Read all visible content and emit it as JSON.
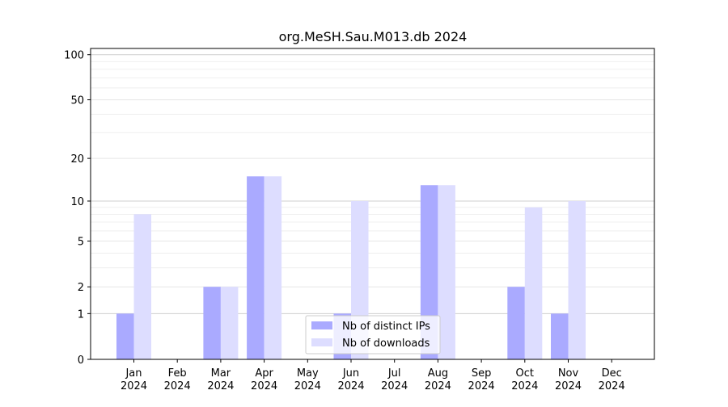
{
  "chart_data": {
    "type": "bar",
    "title": "org.MeSH.Sau.M013.db 2024",
    "xlabel": "",
    "ylabel": "",
    "y_scale": "log1p",
    "ylim": [
      0,
      110
    ],
    "y_ticks": [
      0,
      1,
      2,
      5,
      10,
      20,
      50,
      100
    ],
    "y_tick_labels": [
      "0",
      "1",
      "2",
      "5",
      "10",
      "20",
      "50",
      "100"
    ],
    "categories": [
      [
        "Jan",
        "2024"
      ],
      [
        "Feb",
        "2024"
      ],
      [
        "Mar",
        "2024"
      ],
      [
        "Apr",
        "2024"
      ],
      [
        "May",
        "2024"
      ],
      [
        "Jun",
        "2024"
      ],
      [
        "Jul",
        "2024"
      ],
      [
        "Aug",
        "2024"
      ],
      [
        "Sep",
        "2024"
      ],
      [
        "Oct",
        "2024"
      ],
      [
        "Nov",
        "2024"
      ],
      [
        "Dec",
        "2024"
      ]
    ],
    "series": [
      {
        "name": "Nb of distinct IPs",
        "color": "#aaaaff",
        "values": [
          1,
          0,
          2,
          15,
          0,
          1,
          0,
          13,
          0,
          2,
          1,
          0
        ]
      },
      {
        "name": "Nb of downloads",
        "color": "#ddddff",
        "values": [
          8,
          0,
          2,
          15,
          0,
          10,
          0,
          13,
          0,
          9,
          10,
          0
        ]
      }
    ],
    "legend_position": "bottom-center",
    "grid": true
  }
}
